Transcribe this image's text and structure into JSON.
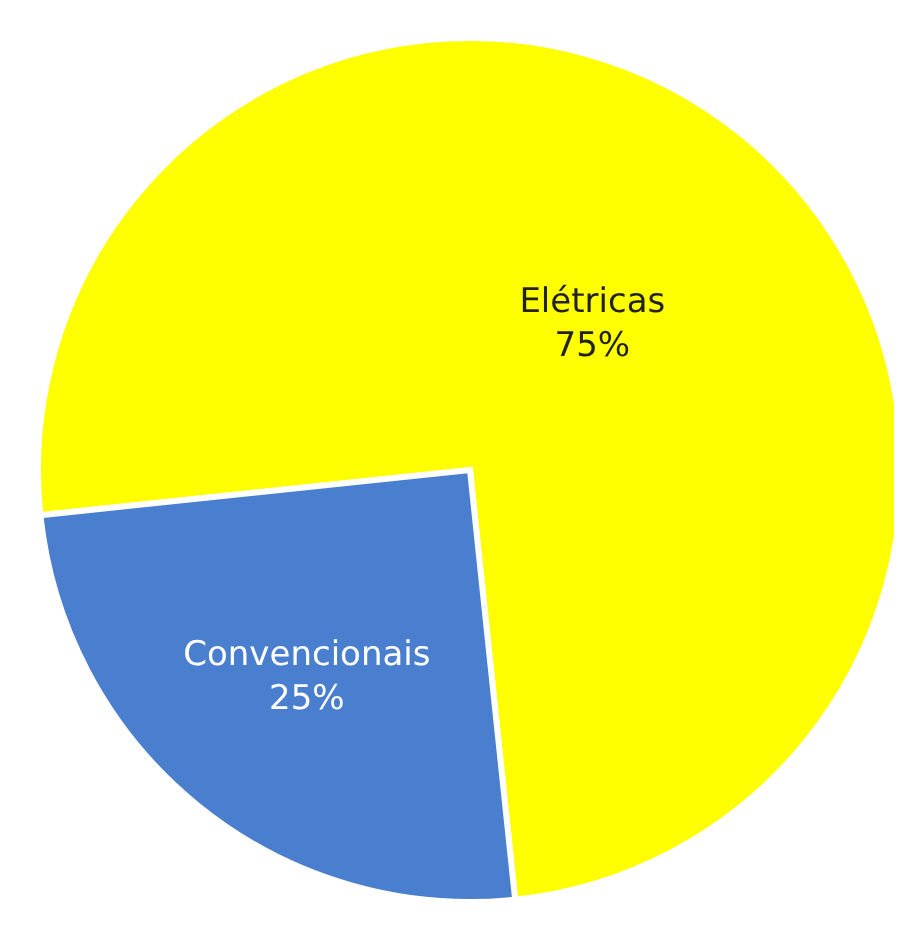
{
  "chart_data": {
    "type": "pie",
    "categories": [
      "Elétricas",
      "Convencionais"
    ],
    "values": [
      75,
      25
    ],
    "colors": [
      "#ffff00",
      "#4a7fcf"
    ],
    "value_labels": [
      "75%",
      "25%"
    ]
  }
}
